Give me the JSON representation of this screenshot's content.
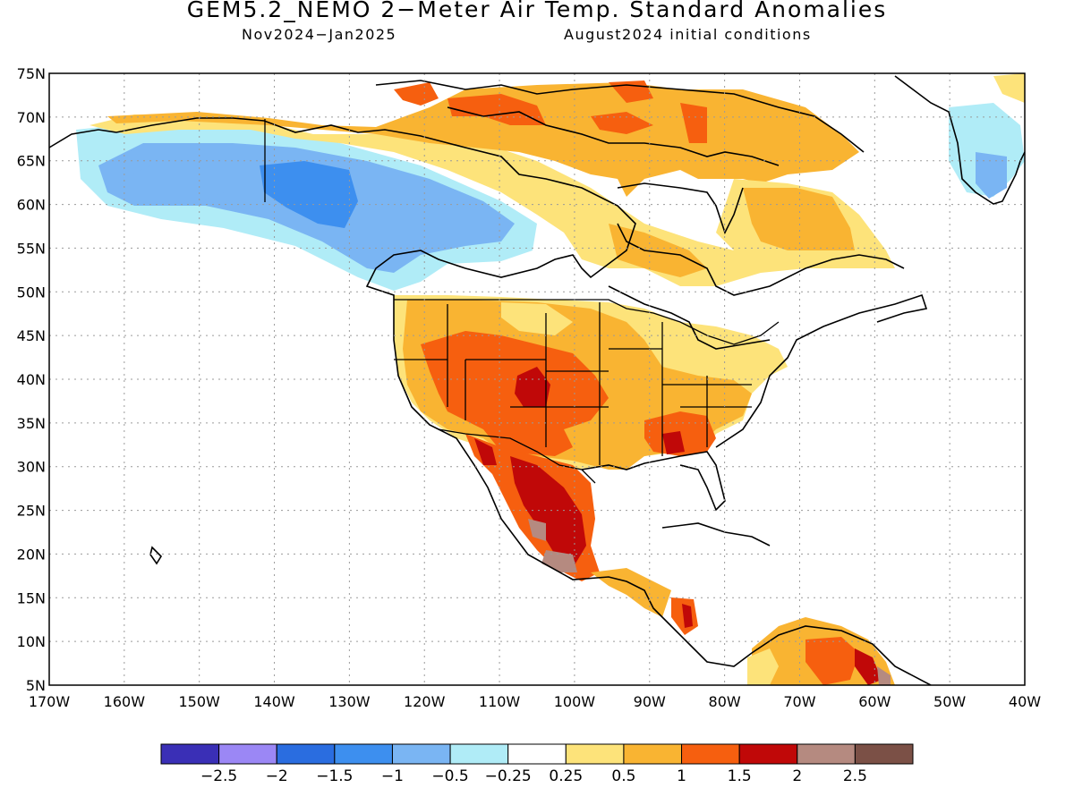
{
  "title": "GEM5.2_NEMO 2−Meter Air Temp. Standard Anomalies",
  "subtitle_left": "Nov2024−Jan2025",
  "subtitle_right": "August2024 initial conditions",
  "lat_labels": [
    "75N",
    "70N",
    "65N",
    "60N",
    "55N",
    "50N",
    "45N",
    "40N",
    "35N",
    "30N",
    "25N",
    "20N",
    "15N",
    "10N",
    "5N"
  ],
  "lon_labels": [
    "170W",
    "160W",
    "150W",
    "140W",
    "130W",
    "120W",
    "110W",
    "100W",
    "90W",
    "80W",
    "70W",
    "60W",
    "50W",
    "40W"
  ],
  "colorbar": {
    "colors": [
      "#3a2fb6",
      "#9b87f5",
      "#2a6de0",
      "#3d8fef",
      "#7ab5f3",
      "#b0ecf7",
      "#ffffff",
      "#fde37a",
      "#f9b432",
      "#f65f0f",
      "#c00808",
      "#b58a80",
      "#7b5046"
    ],
    "labels": [
      "−2.5",
      "−2",
      "−1.5",
      "−1",
      "−0.5",
      "−0.25",
      "0.25",
      "0.5",
      "1",
      "1.5",
      "2",
      "2.5"
    ]
  },
  "map_colors": {
    "blue_light": "#b0ecf7",
    "blue_mid": "#7ab5f3",
    "blue": "#3d8fef",
    "blue_dark": "#2a6de0",
    "yellow": "#fde37a",
    "orange": "#f9b432",
    "orange_dark": "#f65f0f",
    "red": "#c00808",
    "brown": "#b58a80"
  }
}
